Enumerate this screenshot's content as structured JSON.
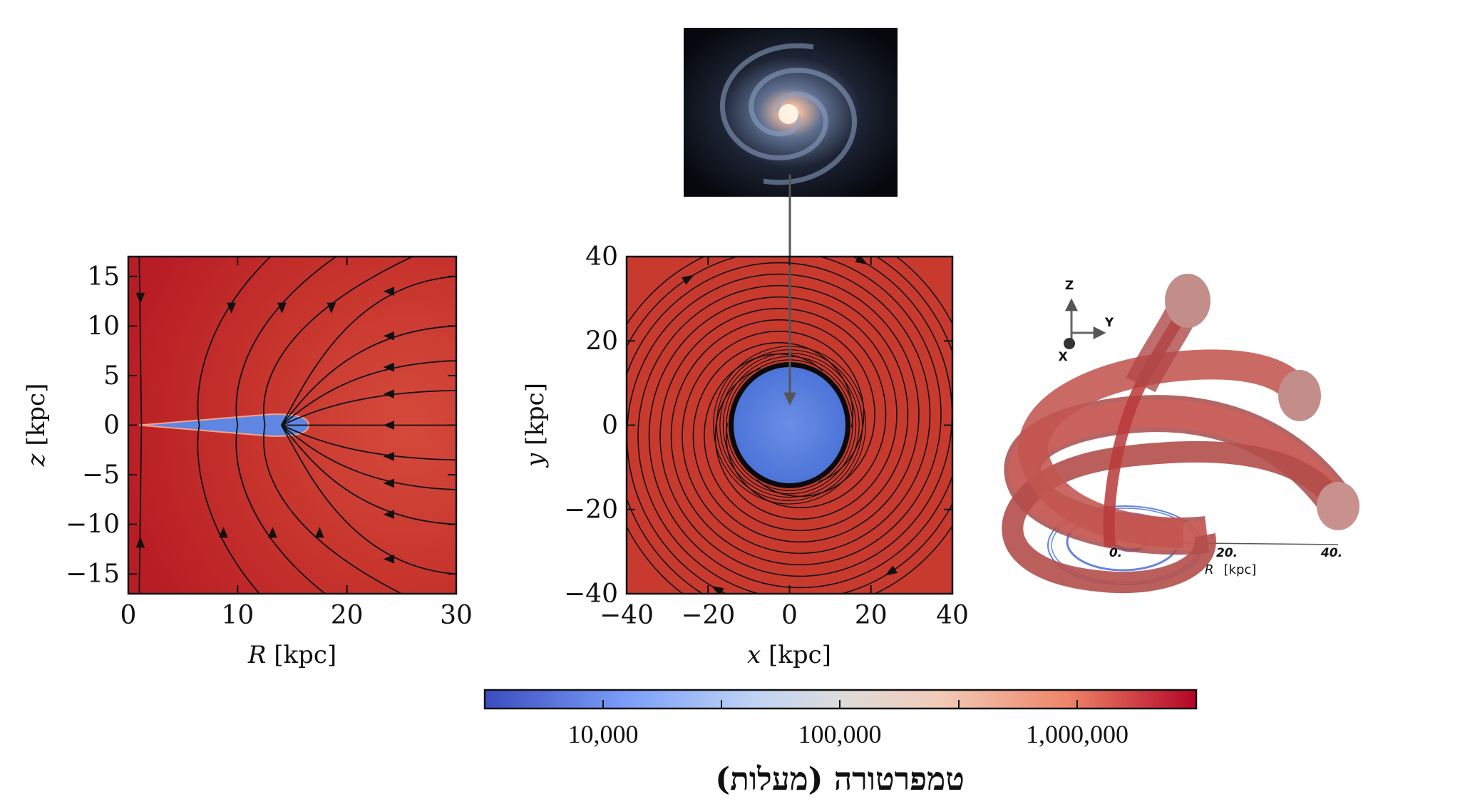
{
  "chart_data": [
    {
      "type": "heatmap",
      "title": "",
      "xlabel_var": "R",
      "xlabel_unit": "[kpc]",
      "ylabel_var": "z",
      "ylabel_unit": "[kpc]",
      "xlim": [
        0,
        30
      ],
      "ylim": [
        -17,
        17
      ],
      "xticks": [
        "0",
        "10",
        "20",
        "30"
      ],
      "yticks": [
        "15",
        "10",
        "5",
        "0",
        "−5",
        "−10",
        "−15"
      ],
      "xtick_values": [
        0,
        10,
        20,
        30
      ],
      "ytick_values": [
        15,
        10,
        5,
        0,
        -5,
        -10,
        -15
      ],
      "background_color": "#c4302b",
      "disk_color": "#5b82e0",
      "disk_extent_R": [
        1,
        16
      ],
      "streamlines": true
    },
    {
      "type": "heatmap",
      "title": "",
      "xlabel_var": "x",
      "xlabel_unit": "[kpc]",
      "ylabel_var": "y",
      "ylabel_unit": "[kpc]",
      "xlim": [
        -40,
        40
      ],
      "ylim": [
        -40,
        40
      ],
      "xticks": [
        "−40",
        "−20",
        "0",
        "20",
        "40"
      ],
      "yticks": [
        "40",
        "20",
        "0",
        "−20",
        "−40"
      ],
      "xtick_values": [
        -40,
        -20,
        0,
        20,
        40
      ],
      "ytick_values": [
        40,
        20,
        0,
        -20,
        -40
      ],
      "background_color": "#c93a2e",
      "disk_color": "#5b82e0",
      "disk_radius_kpc": 14,
      "streamlines": true
    },
    {
      "type": "3d",
      "axis_label_var": "R",
      "axis_label_unit": "[kpc]",
      "axis_ticks": [
        "0.",
        "20.",
        "40."
      ],
      "triad": {
        "z": "Z",
        "y": "Y",
        "x": "X"
      },
      "tube_color": "#c9514c",
      "inner_color": "#4a6fd8"
    }
  ],
  "colorbar": {
    "scale": "log",
    "range": [
      3000,
      3000000
    ],
    "tick_labels": [
      "10,000",
      "100,000",
      "1,000,000"
    ],
    "colors": [
      "#3b4cc0",
      "#7b9ff9",
      "#c0d4f5",
      "#dddcdc",
      "#f2cbb7",
      "#ee8468",
      "#b40426"
    ],
    "label": "טמפרטורה (מעלות)"
  },
  "inset": {
    "type": "galaxy-photo"
  }
}
